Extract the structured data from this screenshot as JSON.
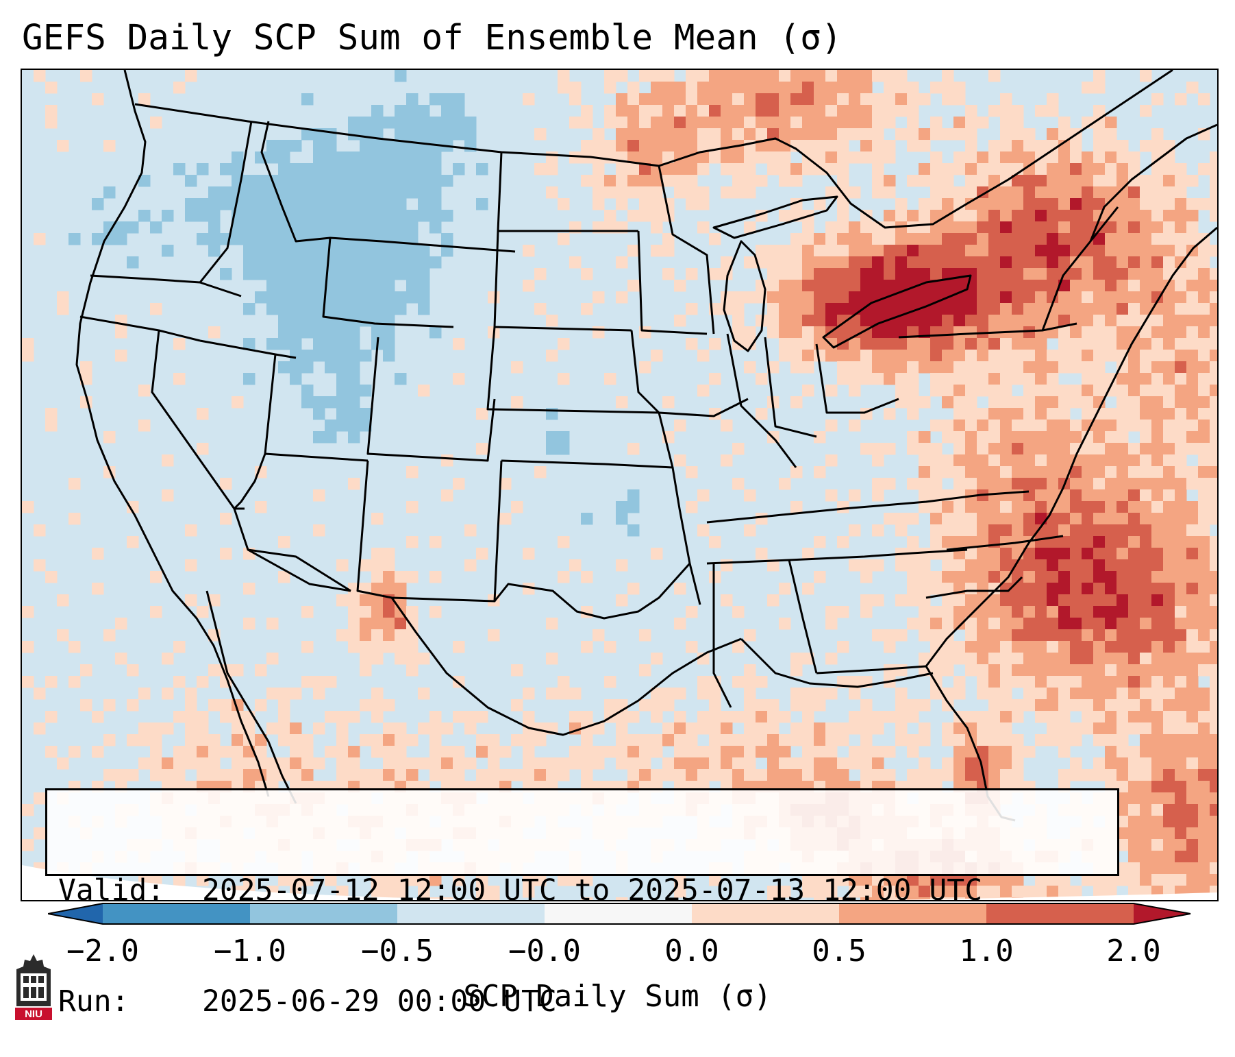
{
  "title": "GEFS Daily SCP Sum of Ensemble Mean (σ)",
  "info": {
    "valid_label": "Valid:",
    "valid_value": "2025-07-12 12:00 UTC to 2025-07-13 12:00 UTC",
    "run_label": "Run:",
    "run_value": "2025-06-29 00:00 UTC"
  },
  "colorbar": {
    "label": "SCP Daily Sum (σ)",
    "ticks": [
      "−2.0",
      "−1.0",
      "−0.5",
      "−0.0",
      "0.0",
      "0.5",
      "1.0",
      "2.0"
    ],
    "colors": {
      "under": "#2166ac",
      "m2_m1": "#4393c3",
      "m1_m05": "#92c5de",
      "m05_0": "#d1e5f0",
      "neutral": "#f7f7f7",
      "p0_p05": "#fddbc7",
      "p05_p1": "#f4a582",
      "p1_p2": "#d6604d",
      "over": "#b2182b"
    }
  },
  "map": {
    "background_color": "#d1e5f0",
    "outside_color": "#ffffff",
    "border_color": "#000000"
  },
  "logo": {
    "text": "NIU",
    "icon": "niu-logo-icon"
  }
}
